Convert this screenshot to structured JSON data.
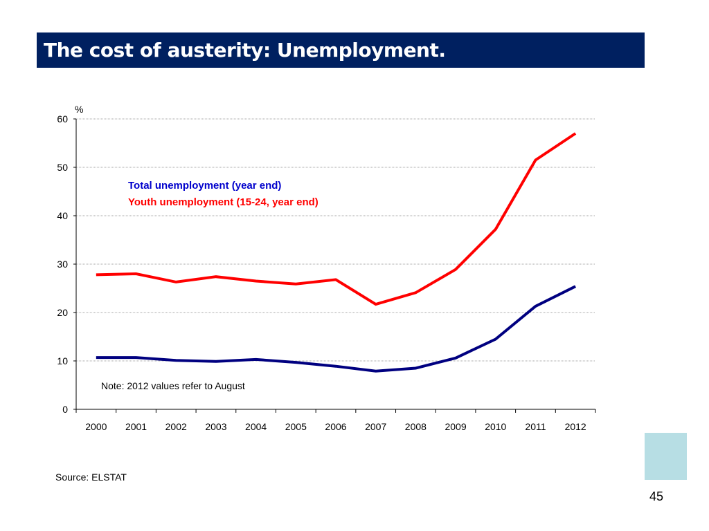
{
  "slide": {
    "title": "The cost of austerity: Unemployment.",
    "source": "Source: ELSTAT",
    "page_number": "45",
    "accent_color": "#002060",
    "deco_color": "#b7dee4"
  },
  "chart_data": {
    "type": "line",
    "title": "",
    "xlabel": "",
    "ylabel": "%",
    "ylim": [
      0,
      60
    ],
    "yticks": [
      "0",
      "10",
      "20",
      "30",
      "40",
      "50",
      "60"
    ],
    "grid": true,
    "categories": [
      "2000",
      "2001",
      "2002",
      "2003",
      "2004",
      "2005",
      "2006",
      "2007",
      "2008",
      "2009",
      "2010",
      "2011",
      "2012"
    ],
    "series": [
      {
        "name": "Total unemployment (year end)",
        "color": "#000080",
        "label_color": "#0000cc",
        "values": [
          10.7,
          10.7,
          10.1,
          9.9,
          10.3,
          9.7,
          8.9,
          7.9,
          8.5,
          10.6,
          14.5,
          21.3,
          25.4
        ]
      },
      {
        "name": "Youth unemployment (15-24, year end)",
        "color": "#ff0000",
        "label_color": "#ff0000",
        "values": [
          27.8,
          28.0,
          26.3,
          27.4,
          26.5,
          25.9,
          26.8,
          21.7,
          24.1,
          28.9,
          37.2,
          51.5,
          57.0
        ]
      }
    ],
    "legend_placement": "top-left",
    "annotation": "Note: 2012 values refer to August"
  }
}
